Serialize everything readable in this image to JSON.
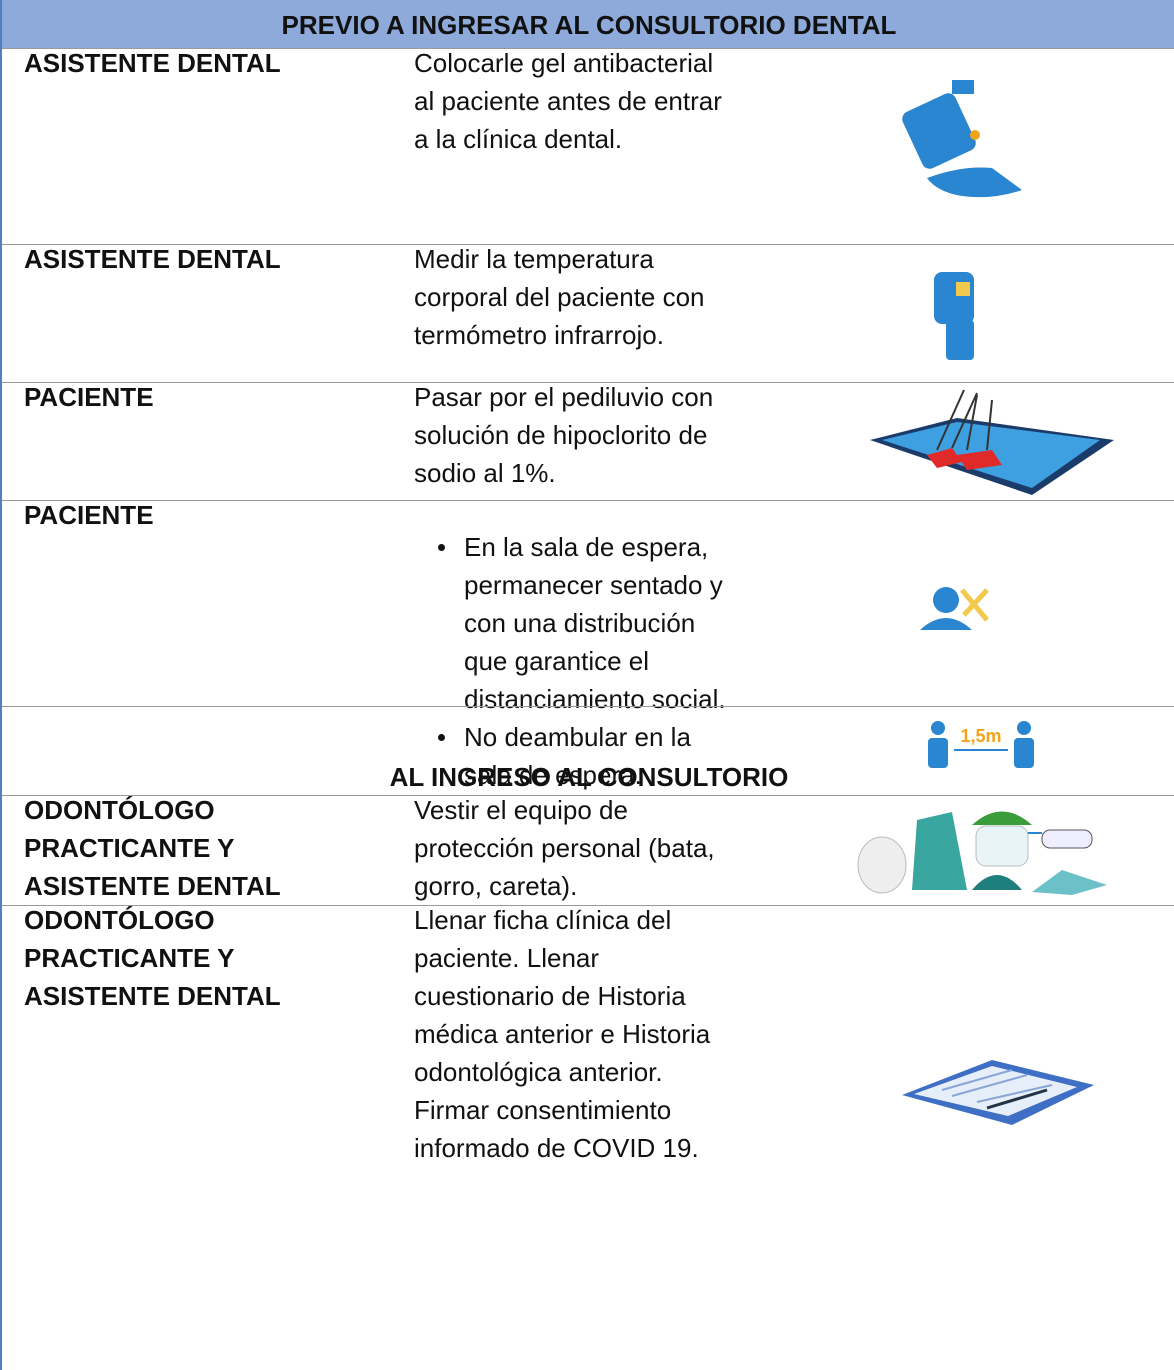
{
  "sections": [
    {
      "title": "PREVIO A INGRESAR AL CONSULTORIO DENTAL",
      "rows": [
        {
          "role": [
            "ASISTENTE DENTAL"
          ],
          "text": [
            "Colocarle gel antibacterial",
            "al paciente antes de entrar",
            "a la clínica dental."
          ]
        },
        {
          "role": [
            "ASISTENTE DENTAL"
          ],
          "text": [
            "Medir la temperatura",
            "corporal del paciente con",
            "termómetro infrarrojo."
          ]
        },
        {
          "role": [
            "PACIENTE"
          ],
          "text": [
            "Pasar por el pediluvio con",
            "solución de hipoclorito de",
            "sodio al 1%."
          ]
        },
        {
          "role": [
            "PACIENTE"
          ],
          "bullets": [
            [
              "En la sala de espera,",
              "permanecer sentado y",
              "con una distribución",
              "que garantice el",
              "distanciamiento social."
            ],
            [
              "No deambular en la",
              "sala de espera."
            ]
          ],
          "icon_label": "1,5m"
        }
      ]
    },
    {
      "title": "AL INGRESO AL CONSULTORIO",
      "rows": [
        {
          "role": [
            "ODONTÓLOGO",
            "PRACTICANTE Y",
            "ASISTENTE DENTAL"
          ],
          "text": [
            "Vestir el equipo de",
            "protección personal (bata,",
            "gorro, careta)."
          ]
        },
        {
          "role": [
            "ODONTÓLOGO",
            "PRACTICANTE Y",
            "ASISTENTE DENTAL"
          ],
          "text": [
            "Llenar ficha clínica del",
            "paciente. Llenar",
            "cuestionario de Historia",
            "médica anterior e Historia",
            "odontológica anterior.",
            "Firmar consentimiento",
            "informado de COVID 19."
          ]
        }
      ]
    }
  ]
}
